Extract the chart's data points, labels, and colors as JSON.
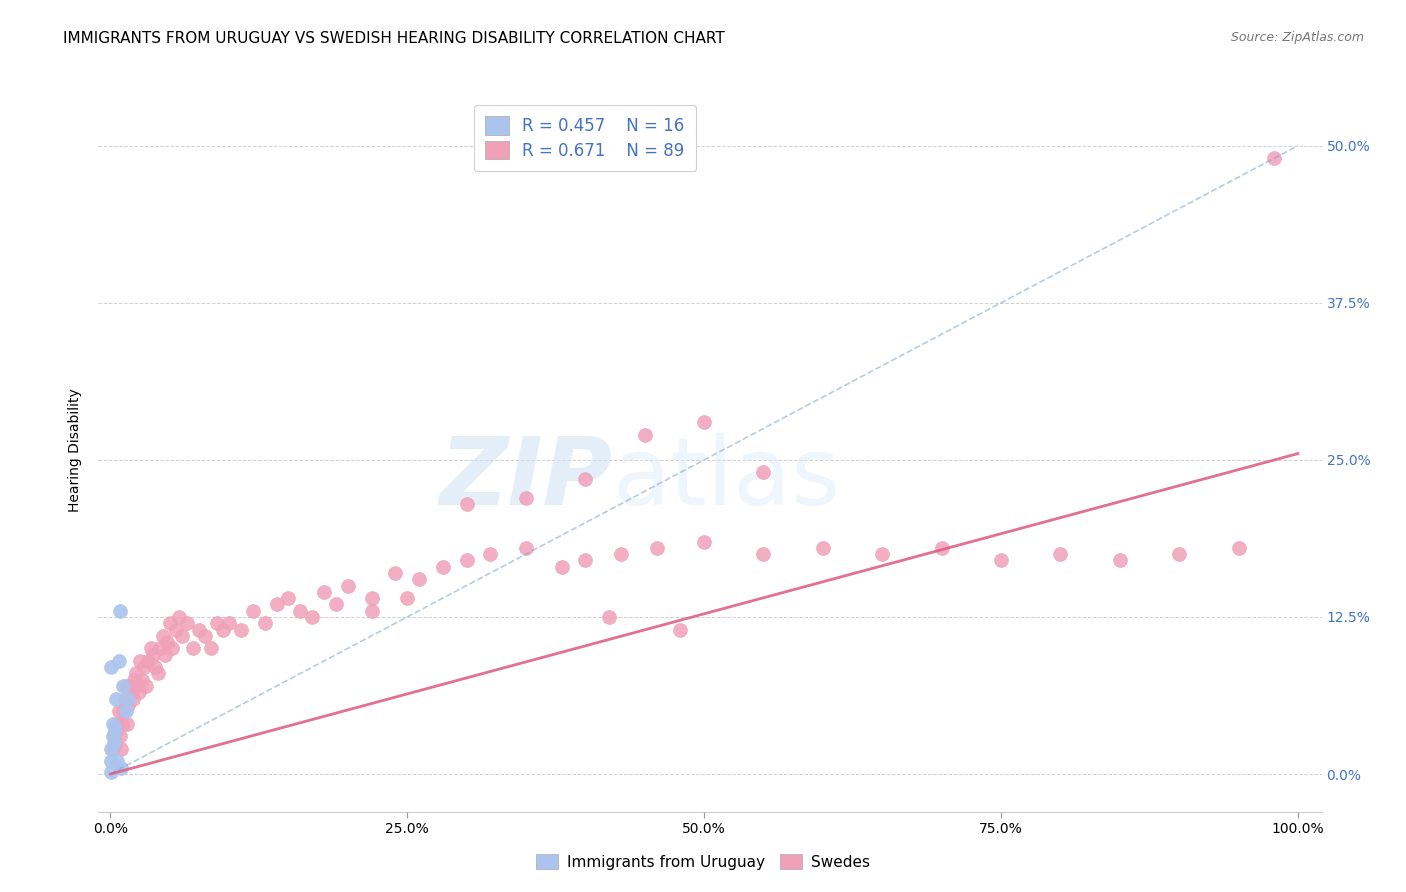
{
  "title": "IMMIGRANTS FROM URUGUAY VS SWEDISH HEARING DISABILITY CORRELATION CHART",
  "source": "Source: ZipAtlas.com",
  "ylabel": "Hearing Disability",
  "ytick_labels": [
    "0.0%",
    "12.5%",
    "25.0%",
    "37.5%",
    "50.0%"
  ],
  "ytick_values": [
    0.0,
    0.125,
    0.25,
    0.375,
    0.5
  ],
  "xtick_labels": [
    "0.0%",
    "25.0%",
    "50.0%",
    "75.0%",
    "100.0%"
  ],
  "xtick_values": [
    0.0,
    0.25,
    0.5,
    0.75,
    1.0
  ],
  "xlim": [
    -0.01,
    1.02
  ],
  "ylim": [
    -0.03,
    0.545
  ],
  "legend_blue_r": "R = 0.457",
  "legend_blue_n": "N = 16",
  "legend_pink_r": "R = 0.671",
  "legend_pink_n": "N = 89",
  "legend_blue_label": "Immigrants from Uruguay",
  "legend_pink_label": "Swedes",
  "blue_scatter_x": [
    0.001,
    0.002,
    0.003,
    0.004,
    0.005,
    0.006,
    0.007,
    0.008,
    0.009,
    0.011,
    0.013,
    0.015,
    0.001,
    0.002,
    0.001,
    0.001
  ],
  "blue_scatter_y": [
    0.02,
    0.04,
    0.025,
    0.035,
    0.06,
    0.01,
    0.09,
    0.13,
    0.005,
    0.07,
    0.05,
    0.06,
    0.085,
    0.03,
    0.01,
    0.002
  ],
  "blue_line_x": [
    0.0,
    1.0
  ],
  "blue_line_y": [
    0.0,
    0.5
  ],
  "pink_scatter_x": [
    0.002,
    0.003,
    0.004,
    0.005,
    0.006,
    0.007,
    0.008,
    0.009,
    0.01,
    0.011,
    0.012,
    0.013,
    0.014,
    0.015,
    0.016,
    0.018,
    0.019,
    0.02,
    0.021,
    0.022,
    0.024,
    0.025,
    0.027,
    0.028,
    0.03,
    0.032,
    0.034,
    0.036,
    0.038,
    0.04,
    0.042,
    0.044,
    0.046,
    0.048,
    0.05,
    0.052,
    0.055,
    0.058,
    0.06,
    0.065,
    0.07,
    0.075,
    0.08,
    0.085,
    0.09,
    0.095,
    0.1,
    0.11,
    0.12,
    0.13,
    0.14,
    0.15,
    0.16,
    0.17,
    0.18,
    0.19,
    0.2,
    0.22,
    0.24,
    0.26,
    0.28,
    0.3,
    0.32,
    0.35,
    0.38,
    0.4,
    0.43,
    0.46,
    0.5,
    0.55,
    0.6,
    0.65,
    0.7,
    0.75,
    0.8,
    0.85,
    0.9,
    0.95,
    0.5,
    0.55,
    0.45,
    0.4,
    0.35,
    0.3,
    0.25,
    0.22,
    0.42,
    0.48,
    0.98
  ],
  "pink_scatter_y": [
    0.02,
    0.03,
    0.025,
    0.035,
    0.04,
    0.05,
    0.03,
    0.02,
    0.04,
    0.05,
    0.06,
    0.07,
    0.04,
    0.055,
    0.07,
    0.065,
    0.06,
    0.075,
    0.07,
    0.08,
    0.065,
    0.09,
    0.075,
    0.085,
    0.07,
    0.09,
    0.1,
    0.095,
    0.085,
    0.08,
    0.1,
    0.11,
    0.095,
    0.105,
    0.12,
    0.1,
    0.115,
    0.125,
    0.11,
    0.12,
    0.1,
    0.115,
    0.11,
    0.1,
    0.12,
    0.115,
    0.12,
    0.115,
    0.13,
    0.12,
    0.135,
    0.14,
    0.13,
    0.125,
    0.145,
    0.135,
    0.15,
    0.14,
    0.16,
    0.155,
    0.165,
    0.17,
    0.175,
    0.18,
    0.165,
    0.17,
    0.175,
    0.18,
    0.185,
    0.175,
    0.18,
    0.175,
    0.18,
    0.17,
    0.175,
    0.17,
    0.175,
    0.18,
    0.28,
    0.24,
    0.27,
    0.235,
    0.22,
    0.215,
    0.14,
    0.13,
    0.125,
    0.115,
    0.49
  ],
  "pink_line_x": [
    0.0,
    1.0
  ],
  "pink_line_y": [
    0.0,
    0.255
  ],
  "dot_size": 100,
  "blue_color": "#aac4ee",
  "blue_edge_color": "#aac4ee",
  "blue_line_color": "#7a9fd4",
  "pink_color": "#f0a0b8",
  "pink_edge_color": "#f0a0b8",
  "pink_line_color": "#e06080",
  "grid_color": "#cccccc",
  "background_color": "#ffffff",
  "watermark_zip": "ZIP",
  "watermark_atlas": "atlas",
  "tick_color_right": "#4472c4",
  "tick_color_bottom": "#000000",
  "title_fontsize": 11,
  "axis_label_fontsize": 10,
  "tick_fontsize": 10,
  "legend_fontsize": 12
}
